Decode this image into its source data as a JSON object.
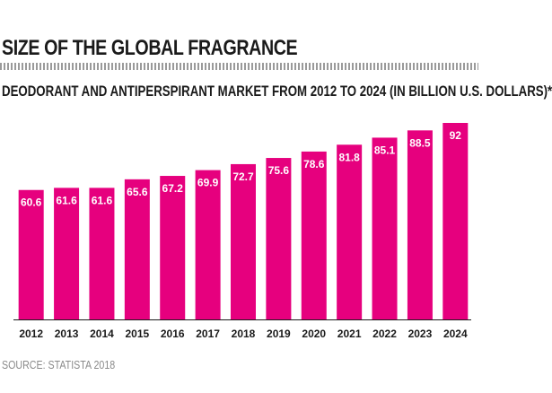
{
  "chart_data": {
    "type": "bar",
    "title": "SIZE OF THE GLOBAL FRAGRANCE",
    "subtitle": "DEODORANT AND ANTIPERSPIRANT MARKET FROM 2012 TO 2024 (IN BILLION U.S. DOLLARS)*",
    "categories": [
      "2012",
      "2013",
      "2014",
      "2015",
      "2016",
      "2017",
      "2018",
      "2019",
      "2020",
      "2021",
      "2022",
      "2023",
      "2024"
    ],
    "values": [
      60.6,
      61.6,
      61.6,
      65.6,
      67.2,
      69.9,
      72.7,
      75.6,
      78.6,
      81.8,
      85.1,
      88.5,
      92
    ],
    "data_labels": [
      "60.6",
      "61.6",
      "61.6",
      "65.6",
      "67.2",
      "69.9",
      "72.7",
      "75.6",
      "78.6",
      "81.8",
      "85.1",
      "88.5",
      "92"
    ],
    "ylim": [
      0,
      92
    ],
    "grid": false,
    "legend": "none",
    "bar_color": "#e6007e",
    "source": "SOURCE: STATISTA 2018"
  }
}
